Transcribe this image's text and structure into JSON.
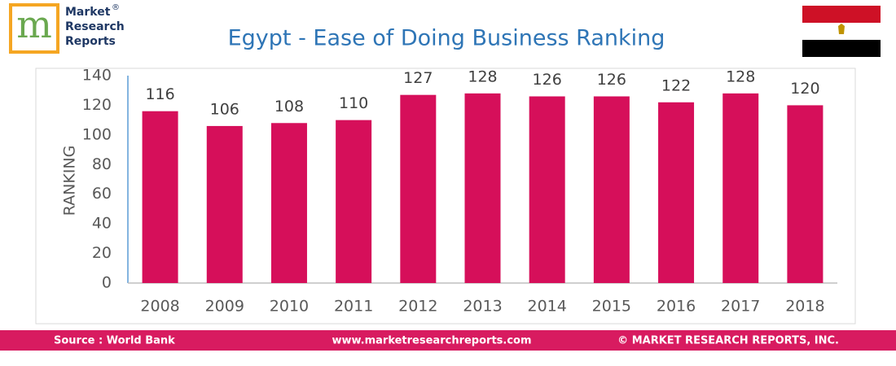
{
  "logo": {
    "mark": "m",
    "lines": [
      "Market",
      "Research",
      "Reports"
    ],
    "registered": "®"
  },
  "chart_data": {
    "type": "bar",
    "title": "Egypt - Ease of Doing Business Ranking",
    "y_label": "RANKING",
    "categories": [
      "2008",
      "2009",
      "2010",
      "2011",
      "2012",
      "2013",
      "2014",
      "2015",
      "2016",
      "2017",
      "2018"
    ],
    "values": [
      116,
      106,
      108,
      110,
      127,
      128,
      126,
      126,
      122,
      128,
      120
    ],
    "color": "#d60f5a",
    "ylim": [
      0,
      140
    ],
    "yticks": [
      0,
      20,
      40,
      60,
      80,
      100,
      120,
      140
    ],
    "grid": false
  },
  "footer": {
    "source": "Source : World Bank",
    "website": "www.marketresearchreports.com",
    "copyright": "© MARKET RESEARCH REPORTS, INC."
  }
}
